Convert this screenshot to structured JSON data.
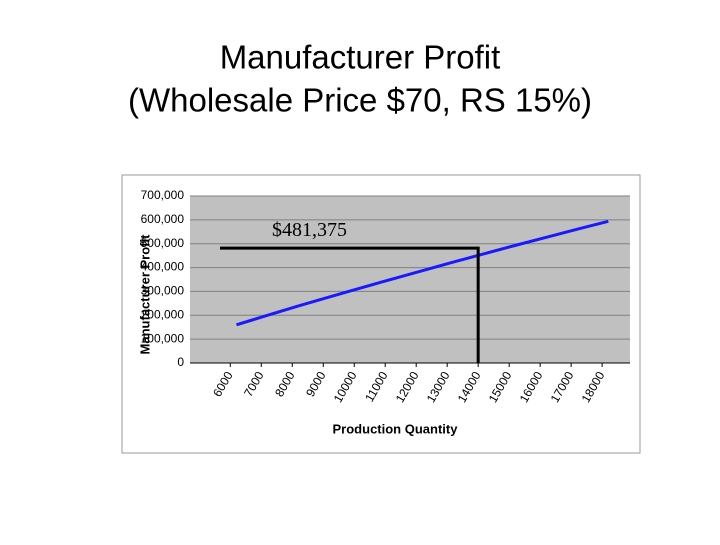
{
  "chart_data": {
    "type": "line",
    "title": "Manufacturer Profit",
    "subtitle": "(Wholesale Price $70, RS 15%)",
    "x_label": "Production Quantity",
    "y_label": "Manufacturer Profit",
    "x": [
      6200,
      7200,
      8200,
      9200,
      10200,
      11200,
      12200,
      13200,
      14200,
      15200,
      16200,
      17200,
      18200
    ],
    "series": [
      {
        "name": "Manufacturer Profit",
        "color": "#1a1aff",
        "values": [
          160000,
          200000,
          239000,
          277000,
          314000,
          351000,
          387000,
          423000,
          458000,
          493000,
          527000,
          561000,
          594000
        ]
      }
    ],
    "xlim": [
      4700,
      18900
    ],
    "xticks": [
      6000,
      7000,
      8000,
      9000,
      10000,
      11000,
      12000,
      13000,
      14000,
      15000,
      16000,
      17000,
      18000
    ],
    "ylim": [
      0,
      700000
    ],
    "yticks": [
      0,
      {
        "value": 100000,
        "label": "100,000"
      },
      {
        "value": 200000,
        "label": "200,000"
      },
      {
        "value": 300000,
        "label": "300,000"
      },
      {
        "value": 400000,
        "label": "400,000"
      },
      {
        "value": 500000,
        "label": "500,000"
      },
      {
        "value": 600000,
        "label": "600,000"
      },
      {
        "value": 700000,
        "label": "700,000"
      }
    ],
    "grid": true,
    "annotation": {
      "x": 14000,
      "value": 481375,
      "label": "$481,375"
    }
  }
}
